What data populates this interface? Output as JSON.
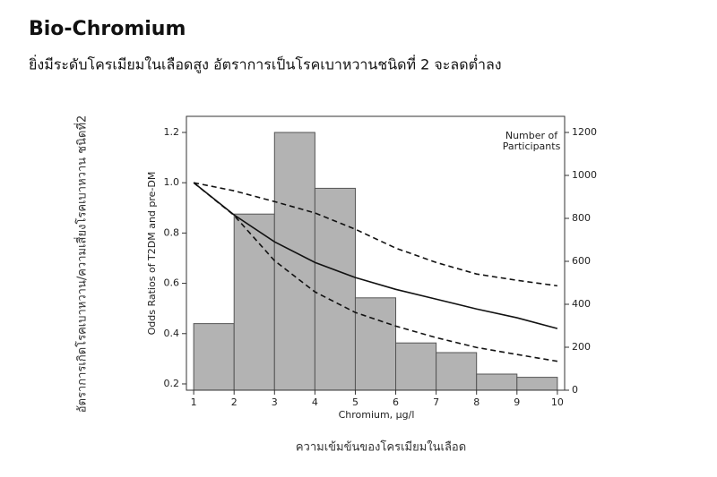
{
  "chart_data": {
    "type": "histogram",
    "title": "Bio-Chromium",
    "subtitle": "ยิ่งมีระดับโครเมียมในเลือดสูง อัตราการเป็นโรคเบาหวานชนิดที่ 2 จะลดต่ำลง",
    "outer_ylabel": "อัตราการเกิดโรคเบาหวาน/ความเสี่ยงโรคเบาหวาน ชนิดที่2",
    "outer_xlabel": "ความเข้มข้นของโครเมียมในเลือด",
    "xlabel": "Chromium, µg/l",
    "ylabel": "Odds Ratios of T2DM and pre-DM",
    "y2label": [
      "Number of",
      "Participants"
    ],
    "bins": [
      1,
      2,
      3,
      4,
      5,
      6,
      7,
      8,
      9,
      10
    ],
    "counts": [
      310,
      820,
      1200,
      940,
      430,
      220,
      175,
      75,
      60
    ],
    "bar_color": "#b3b3b3",
    "x": [
      1,
      2,
      3,
      4,
      5,
      6,
      7,
      8,
      9,
      10
    ],
    "series": [
      {
        "color": "#111111",
        "style": "solid",
        "values": [
          1.0,
          0.872,
          0.765,
          0.683,
          0.623,
          0.576,
          0.537,
          0.498,
          0.463,
          0.42
        ]
      },
      {
        "color": "#111111",
        "style": "dashed",
        "values": [
          1.0,
          0.968,
          0.925,
          0.88,
          0.815,
          0.74,
          0.683,
          0.637,
          0.612,
          0.59
        ]
      },
      {
        "color": "#111111",
        "style": "dashed",
        "values": [
          1.0,
          0.87,
          0.69,
          0.566,
          0.484,
          0.43,
          0.384,
          0.345,
          0.317,
          0.29
        ]
      }
    ],
    "xlim": [
      0.82,
      10.18
    ],
    "xticks": [
      1,
      2,
      3,
      4,
      5,
      6,
      7,
      8,
      9,
      10
    ],
    "ylim": [
      0.175,
      1.264
    ],
    "yticks": [
      0.2,
      0.4,
      0.6,
      0.8,
      {
        "value": 1.0,
        "label": "1.0"
      },
      1.2
    ],
    "y2lim": [
      0,
      1275
    ],
    "y2ticks": [
      0,
      200,
      400,
      600,
      800,
      1000,
      1200
    ]
  }
}
